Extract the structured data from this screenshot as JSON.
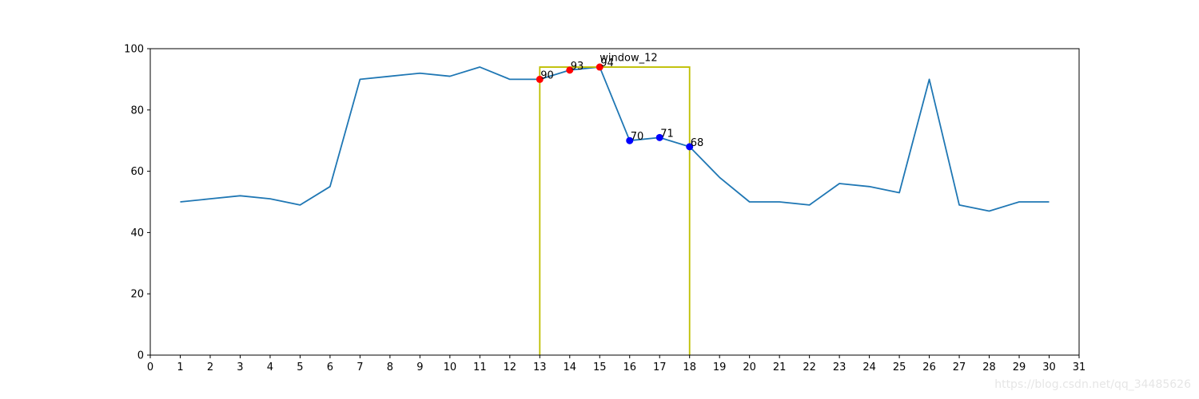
{
  "chart_data": {
    "type": "line",
    "x": [
      1,
      2,
      3,
      4,
      5,
      6,
      7,
      8,
      9,
      10,
      11,
      12,
      13,
      14,
      15,
      16,
      17,
      18,
      19,
      20,
      21,
      22,
      23,
      24,
      25,
      26,
      27,
      28,
      29,
      30
    ],
    "series": [
      {
        "values": [
          50,
          51,
          52,
          51,
          49,
          55,
          90,
          91,
          92,
          91,
          94,
          90,
          90,
          93,
          94,
          70,
          71,
          68,
          58,
          50,
          50,
          49,
          56,
          55,
          53,
          90,
          49,
          47,
          50,
          50
        ],
        "color": "#1f77b4"
      }
    ],
    "highlight_points": [
      {
        "x": 13,
        "y": 90,
        "label": "90",
        "color": "#ff0000"
      },
      {
        "x": 14,
        "y": 93,
        "label": "93",
        "color": "#ff0000"
      },
      {
        "x": 15,
        "y": 94,
        "label": "94",
        "color": "#ff0000"
      },
      {
        "x": 16,
        "y": 70,
        "label": "70",
        "color": "#0000ff"
      },
      {
        "x": 17,
        "y": 71,
        "label": "71",
        "color": "#0000ff"
      },
      {
        "x": 18,
        "y": 68,
        "label": "68",
        "color": "#0000ff"
      }
    ],
    "window": {
      "x_start": 13,
      "x_end": 18,
      "top": 94,
      "label": "window_12",
      "label_x": 15,
      "label_y": 97,
      "color": "#bfbf00"
    },
    "xlim": [
      0,
      31
    ],
    "ylim": [
      0,
      100
    ],
    "x_ticks": [
      0,
      1,
      2,
      3,
      4,
      5,
      6,
      7,
      8,
      9,
      10,
      11,
      12,
      13,
      14,
      15,
      16,
      17,
      18,
      19,
      20,
      21,
      22,
      23,
      24,
      25,
      26,
      27,
      28,
      29,
      30,
      31
    ],
    "y_ticks": [
      0,
      20,
      40,
      60,
      80,
      100
    ],
    "grid": false
  },
  "watermark": "https://blog.csdn.net/qq_34485626"
}
